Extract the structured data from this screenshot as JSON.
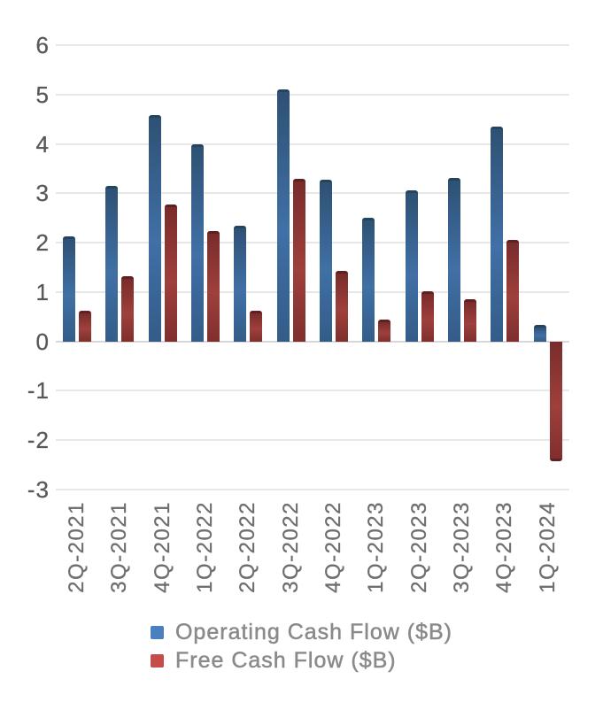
{
  "chart_data": {
    "type": "bar",
    "title": "",
    "xlabel": "",
    "ylabel": "",
    "categories": [
      "2Q-2021",
      "3Q-2021",
      "4Q-2021",
      "1Q-2022",
      "2Q-2022",
      "3Q-2022",
      "4Q-2022",
      "1Q-2023",
      "2Q-2023",
      "3Q-2023",
      "4Q-2023",
      "1Q-2024"
    ],
    "series": [
      {
        "name": "Operating Cash Flow ($B)",
        "values": [
          2.12,
          3.15,
          4.58,
          4.0,
          2.35,
          5.1,
          3.28,
          2.51,
          3.06,
          3.31,
          4.35,
          0.33
        ],
        "bar_color_top": "#2e5174",
        "bar_color_mid": "#4070a6",
        "bar_color_bottom": "#335c88",
        "bar_cap_color": "#24435f",
        "legend_color": "#4a7fc1"
      },
      {
        "name": "Free Cash Flow ($B)",
        "values": [
          0.62,
          1.33,
          2.78,
          2.23,
          0.62,
          3.3,
          1.42,
          0.44,
          1.01,
          0.85,
          2.06,
          -2.43
        ],
        "bar_color_top": "#792c2b",
        "bar_color_mid": "#9e403c",
        "bar_color_bottom": "#7f2f2e",
        "bar_cap_color": "#5f201f",
        "legend_color": "#c64b4b"
      }
    ],
    "y_ticks": [
      6,
      5,
      4,
      3,
      2,
      1,
      0,
      -1,
      -2,
      -3
    ],
    "ylim": [
      -3,
      6
    ],
    "grid": true,
    "legend_position": "bottom",
    "grid_color": "#e7e7e7",
    "zero_line_color": "#d8d8d8",
    "axis_label_color": "#58595b",
    "x_label_color": "#6f6f6f",
    "legend_text_color": "#8a8a8a",
    "background_color": "#ffffff"
  }
}
